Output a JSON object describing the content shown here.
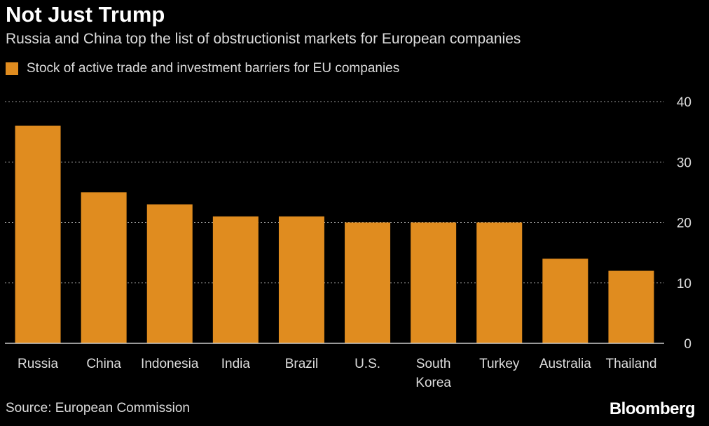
{
  "header": {
    "title": "Not Just Trump",
    "subtitle": "Russia and China top the list of obstructionist markets for European companies"
  },
  "footer": {
    "source": "Source: European Commission",
    "brand": "Bloomberg"
  },
  "colors": {
    "bar": "#e08c1f",
    "background": "#000000",
    "grid": "#9a9a9a",
    "text": "#dddddd"
  },
  "chart_data": {
    "type": "bar",
    "categories": [
      "Russia",
      "China",
      "Indonesia",
      "India",
      "Brazil",
      "U.S.",
      "South Korea",
      "Turkey",
      "Australia",
      "Thailand"
    ],
    "series": [
      {
        "name": "Stock of active trade and investment barriers for EU companies",
        "values": [
          36,
          25,
          23,
          21,
          21,
          20,
          20,
          20,
          14,
          12
        ]
      }
    ],
    "yticks": [
      0,
      10,
      20,
      30,
      40
    ],
    "ylim": [
      0,
      40
    ],
    "y_axis_side": "right",
    "grid": true,
    "legend_position": "top-left"
  }
}
